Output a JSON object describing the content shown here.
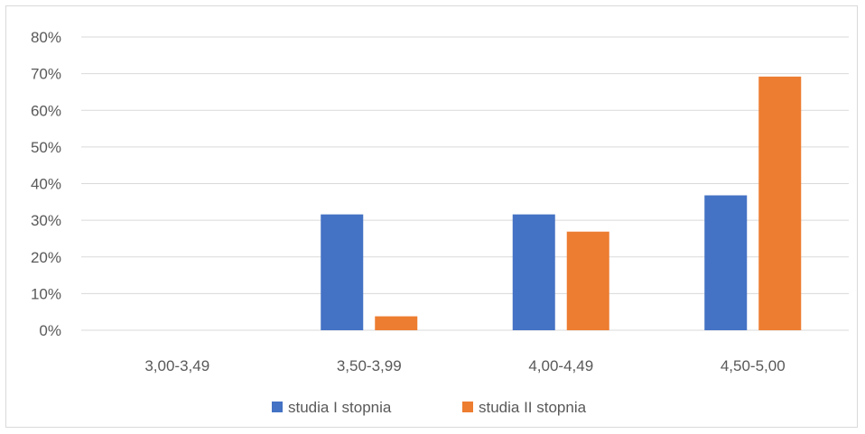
{
  "chart_data": {
    "type": "bar",
    "categories": [
      "3,00-3,49",
      "3,50-3,99",
      "4,00-4,49",
      "4,50-5,00"
    ],
    "series": [
      {
        "name": "studia I stopnia",
        "values": [
          0,
          31.6,
          31.6,
          36.8
        ],
        "color": "#4472c4"
      },
      {
        "name": "studia II stopnia",
        "values": [
          0,
          3.8,
          26.9,
          69.2
        ],
        "color": "#ed7d31"
      }
    ],
    "y_ticks": [
      "0%",
      "10%",
      "20%",
      "30%",
      "40%",
      "50%",
      "60%",
      "70%",
      "80%"
    ],
    "ylim": [
      0,
      80
    ],
    "grid": true,
    "legend_position": "bottom"
  }
}
